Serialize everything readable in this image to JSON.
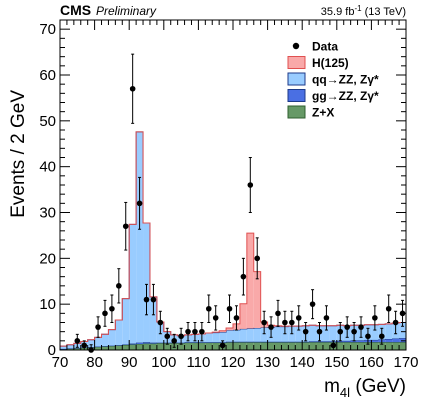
{
  "header": {
    "experiment": "CMS",
    "status": "Preliminary",
    "lumi_prefix": "35.9 fb",
    "lumi_exp": "-1",
    "lumi_suffix": " (13 TeV)"
  },
  "colors": {
    "higgs": "#f9a9a9",
    "higgs_line": "#e05050",
    "qqzz": "#99ccff",
    "qqzz_line": "#1d3a8a",
    "ggzz": "#4a6fe3",
    "zx": "#669966",
    "zx_line": "#2f5f2f"
  },
  "chart_data": {
    "type": "bar",
    "stacked": true,
    "xlabel_main": "m",
    "xlabel_sub": "4l",
    "xlabel_unit": " (GeV)",
    "ylabel": "Events / 2 GeV",
    "xlim": [
      70,
      170
    ],
    "ylim": [
      0,
      72
    ],
    "bin_width": 2,
    "xticks": [
      70,
      80,
      90,
      100,
      110,
      120,
      130,
      140,
      150,
      160,
      170
    ],
    "yticks": [
      0,
      10,
      20,
      30,
      40,
      50,
      60,
      70
    ],
    "legend_position": "top-right",
    "legend": [
      {
        "key": "data",
        "label": "Data"
      },
      {
        "key": "higgs",
        "label": "H(125)"
      },
      {
        "key": "qqzz",
        "label": "qq→ZZ, Zγ*"
      },
      {
        "key": "ggzz",
        "label": "gg→ZZ, Zγ*"
      },
      {
        "key": "zx",
        "label": "Z+X"
      }
    ],
    "bin_edges_start": 70,
    "series": [
      {
        "key": "zx",
        "name": "Z+X",
        "values": [
          0.2,
          0.3,
          0.4,
          0.5,
          0.6,
          0.7,
          0.8,
          0.9,
          1.0,
          1.1,
          1.2,
          1.3,
          1.4,
          1.4,
          1.5,
          1.5,
          1.5,
          1.5,
          1.6,
          1.6,
          1.6,
          1.6,
          1.6,
          1.6,
          1.7,
          1.7,
          1.7,
          1.7,
          1.7,
          1.7,
          1.7,
          1.7,
          1.7,
          1.7,
          1.7,
          1.7,
          1.7,
          1.7,
          1.7,
          1.7,
          1.7,
          1.7,
          1.7,
          1.7,
          1.7,
          1.7,
          1.7,
          1.7,
          1.7,
          1.7
        ]
      },
      {
        "key": "ggzz",
        "name": "gg→ZZ, Zγ*",
        "values": [
          0.05,
          0.05,
          0.05,
          0.05,
          0.05,
          0.05,
          0.05,
          0.05,
          0.05,
          0.1,
          0.2,
          0.3,
          0.3,
          0.2,
          0.1,
          0.1,
          0.1,
          0.1,
          0.1,
          0.1,
          0.1,
          0.1,
          0.1,
          0.1,
          0.1,
          0.1,
          0.1,
          0.1,
          0.1,
          0.1,
          0.1,
          0.1,
          0.1,
          0.1,
          0.1,
          0.1,
          0.2,
          0.2,
          0.2,
          0.2,
          0.3,
          0.3,
          0.4,
          0.4,
          0.5,
          0.5,
          0.6,
          0.7,
          0.8,
          0.9
        ]
      },
      {
        "key": "qqzz",
        "name": "qq→ZZ, Zγ*",
        "values": [
          0.6,
          0.8,
          1.0,
          1.3,
          1.6,
          2.0,
          2.6,
          3.5,
          5.5,
          10.0,
          26.0,
          46.0,
          26.0,
          10.0,
          4.5,
          2.4,
          1.7,
          1.5,
          1.6,
          1.7,
          1.8,
          2.0,
          2.1,
          2.2,
          2.5,
          2.6,
          2.8,
          2.9,
          3.0,
          3.1,
          3.2,
          3.3,
          3.3,
          3.4,
          3.4,
          3.5,
          3.5,
          3.4,
          3.4,
          3.4,
          3.4,
          3.3,
          3.3,
          3.3,
          3.3,
          3.3,
          3.3,
          3.3,
          3.4,
          3.4
        ]
      },
      {
        "key": "higgs",
        "name": "H(125)",
        "values": [
          0,
          0,
          0,
          0,
          0,
          0,
          0,
          0,
          0,
          0,
          0,
          0,
          0,
          0,
          0,
          0,
          0,
          0,
          0,
          0,
          0,
          0,
          0.1,
          0.3,
          0.5,
          1.3,
          5.5,
          20.8,
          12.3,
          1.2,
          0.4,
          0.2,
          0.1,
          0,
          0,
          0,
          0,
          0,
          0,
          0,
          0,
          0,
          0,
          0,
          0,
          0,
          0,
          0,
          0,
          0
        ]
      }
    ],
    "data_points": [
      {
        "x": 75,
        "y": 2
      },
      {
        "x": 77,
        "y": 1
      },
      {
        "x": 79,
        "y": 0
      },
      {
        "x": 81,
        "y": 5
      },
      {
        "x": 83,
        "y": 8
      },
      {
        "x": 85,
        "y": 9
      },
      {
        "x": 87,
        "y": 14
      },
      {
        "x": 89,
        "y": 27
      },
      {
        "x": 91,
        "y": 57
      },
      {
        "x": 93,
        "y": 32
      },
      {
        "x": 95,
        "y": 11
      },
      {
        "x": 97,
        "y": 11
      },
      {
        "x": 99,
        "y": 6
      },
      {
        "x": 101,
        "y": 3
      },
      {
        "x": 103,
        "y": 2
      },
      {
        "x": 105,
        "y": 3
      },
      {
        "x": 107,
        "y": 4
      },
      {
        "x": 109,
        "y": 4
      },
      {
        "x": 111,
        "y": 4
      },
      {
        "x": 113,
        "y": 9
      },
      {
        "x": 115,
        "y": 7
      },
      {
        "x": 117,
        "y": 1
      },
      {
        "x": 119,
        "y": 9
      },
      {
        "x": 121,
        "y": 7
      },
      {
        "x": 123,
        "y": 16
      },
      {
        "x": 125,
        "y": 36
      },
      {
        "x": 127,
        "y": 20
      },
      {
        "x": 129,
        "y": 6
      },
      {
        "x": 131,
        "y": 5
      },
      {
        "x": 133,
        "y": 8
      },
      {
        "x": 135,
        "y": 6
      },
      {
        "x": 137,
        "y": 6
      },
      {
        "x": 139,
        "y": 7
      },
      {
        "x": 141,
        "y": 4
      },
      {
        "x": 143,
        "y": 10
      },
      {
        "x": 145,
        "y": 4
      },
      {
        "x": 147,
        "y": 7
      },
      {
        "x": 149,
        "y": 1
      },
      {
        "x": 151,
        "y": 4
      },
      {
        "x": 153,
        "y": 5
      },
      {
        "x": 155,
        "y": 4
      },
      {
        "x": 157,
        "y": 5
      },
      {
        "x": 159,
        "y": 3
      },
      {
        "x": 161,
        "y": 7
      },
      {
        "x": 163,
        "y": 3
      },
      {
        "x": 165,
        "y": 9
      },
      {
        "x": 167,
        "y": 6
      },
      {
        "x": 169,
        "y": 8
      }
    ]
  }
}
